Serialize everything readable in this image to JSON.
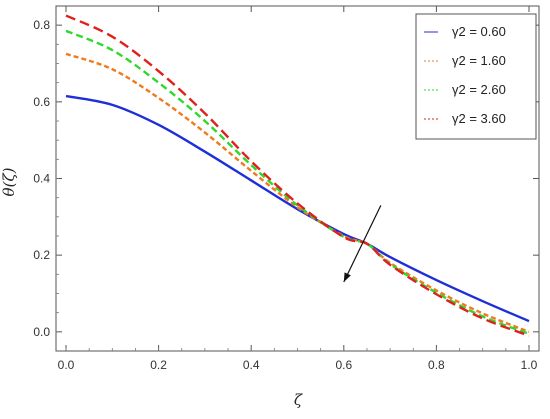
{
  "chart_data": {
    "type": "line",
    "title": "",
    "xlabel": "ζ",
    "ylabel": "θ(ζ)",
    "xlim": [
      0,
      1
    ],
    "ylim": [
      -0.05,
      0.85
    ],
    "x_ticks": [
      "0.0",
      "0.2",
      "0.4",
      "0.6",
      "0.8",
      "1.0"
    ],
    "y_ticks": [
      "0.0",
      "0.2",
      "0.4",
      "0.6",
      "0.8"
    ],
    "grid": false,
    "legend_position": "top-right",
    "x": [
      0,
      0.1,
      0.2,
      0.3,
      0.4,
      0.5,
      0.6,
      0.65,
      0.7,
      0.8,
      0.9,
      1.0
    ],
    "series": [
      {
        "name": "γ2 = 0.60",
        "color": "#1f2fd8",
        "dash": "solid",
        "values": [
          0.615,
          0.592,
          0.54,
          0.47,
          0.395,
          0.32,
          0.255,
          0.23,
          0.195,
          0.135,
          0.08,
          0.028
        ]
      },
      {
        "name": "γ2 = 1.60",
        "color": "#f07a1e",
        "dash": "dashed-short",
        "values": [
          0.725,
          0.685,
          0.61,
          0.52,
          0.42,
          0.325,
          0.25,
          0.23,
          0.18,
          0.108,
          0.048,
          0.0
        ]
      },
      {
        "name": "γ2 = 2.60",
        "color": "#2fd82f",
        "dash": "dashed",
        "values": [
          0.785,
          0.735,
          0.65,
          0.55,
          0.435,
          0.33,
          0.248,
          0.23,
          0.177,
          0.102,
          0.04,
          -0.005
        ]
      },
      {
        "name": "γ2 = 3.60",
        "color": "#e0201e",
        "dash": "dashed-long",
        "values": [
          0.825,
          0.77,
          0.68,
          0.57,
          0.445,
          0.335,
          0.247,
          0.23,
          0.175,
          0.098,
          0.035,
          -0.01
        ]
      }
    ],
    "annotation": {
      "type": "arrow",
      "from": [
        0.68,
        0.33
      ],
      "to": [
        0.6,
        0.13
      ]
    }
  }
}
